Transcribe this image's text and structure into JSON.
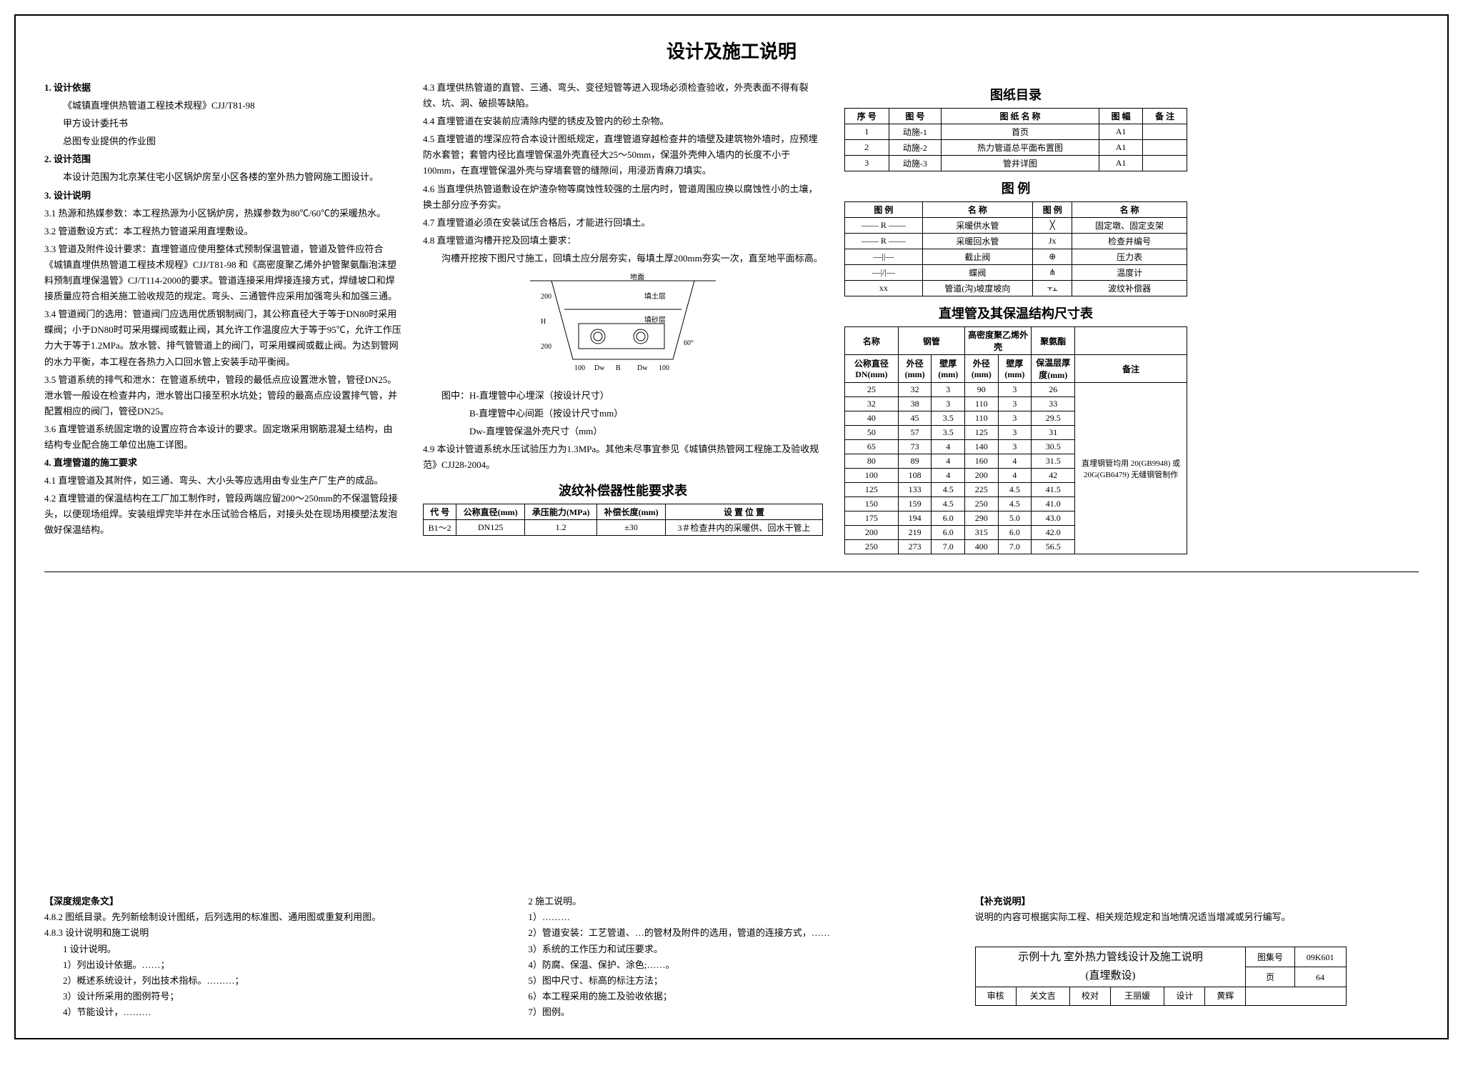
{
  "main_title": "设计及施工说明",
  "col1": {
    "h1": "1. 设计依据",
    "p1": "《城镇直埋供热管道工程技术规程》CJJ/T81-98",
    "p2": "甲方设计委托书",
    "p3": "总图专业提供的作业图",
    "h2": "2. 设计范围",
    "p4": "本设计范围为北京某住宅小区锅炉房至小区各楼的室外热力管网施工图设计。",
    "h3": "3. 设计说明",
    "p5": "3.1 热源和热媒参数：本工程热源为小区锅炉房，热媒参数为80℃/60℃的采暖热水。",
    "p6": "3.2 管道敷设方式：本工程热力管道采用直埋敷设。",
    "p7": "3.3 管道及附件设计要求：直埋管道应使用整体式预制保温管道，管道及管件应符合《城镇直埋供热管道工程技术规程》CJJ/T81-98 和《高密度聚乙烯外护管聚氨酯泡沫塑料预制直埋保温管》CJ/T114-2000的要求。管道连接采用焊接连接方式，焊缝坡口和焊接质量应符合相关施工验收规范的规定。弯头、三通管件应采用加强弯头和加强三通。",
    "p8": "3.4 管道阀门的选用：管道阀门应选用优质钢制阀门，其公称直径大于等于DN80时采用蝶阀；小于DN80时可采用蝶阀或截止阀，其允许工作温度应大于等于95℃，允许工作压力大于等于1.2MPa。放水管、排气管管道上的阀门，可采用蝶阀或截止阀。为达到管网的水力平衡，本工程在各热力入口回水管上安装手动平衡阀。",
    "p9": "3.5 管道系统的排气和泄水：在管道系统中，管段的最低点应设置泄水管，管径DN25。泄水管一般设在检查井内，泄水管出口接至积水坑处；管段的最高点应设置排气管，并配置相应的阀门，管径DN25。",
    "p10": "3.6 直埋管道系统固定墩的设置应符合本设计的要求。固定墩采用钢筋混凝土结构，由结构专业配合施工单位出施工详图。",
    "h4": "4. 直埋管道的施工要求",
    "p11": "4.1 直埋管道及其附件，如三通、弯头、大小头等应选用由专业生产厂生产的成品。",
    "p12": "4.2 直埋管道的保温结构在工厂加工制作时，管段两端应留200～250mm的不保温管段接头，以便现场组焊。安装组焊完毕并在水压试验合格后，对接头处在现场用模塑法发泡做好保温结构。"
  },
  "col2": {
    "p1": "4.3 直埋供热管道的直管、三通、弯头、变径短管等进入现场必须检查验收，外壳表面不得有裂纹、坑、洞、破损等缺陷。",
    "p2": "4.4 直埋管道在安装前应清除内壁的锈皮及管内的砂土杂物。",
    "p3": "4.5 直埋管道的埋深应符合本设计图纸规定，直埋管道穿越检查井的墙壁及建筑物外墙时，应预埋防水套管；套管内径比直埋管保温外壳直径大25～50mm，保温外壳伸入墙内的长度不小于100mm，在直埋管保温外壳与穿墙套管的缝隙间，用浸沥青麻刀填实。",
    "p4": "4.6 当直埋供热管道敷设在炉渣杂物等腐蚀性较强的土层内时，管道周围应换以腐蚀性小的土壤，换土部分应予夯实。",
    "p5": "4.7 直埋管道必须在安装试压合格后，才能进行回填土。",
    "p6": "4.8 直埋管道沟槽开挖及回填土要求：",
    "p7": "沟槽开挖按下图尺寸施工，回填土应分层夯实，每填土厚200mm夯实一次，直至地平面标高。",
    "diagram_labels": {
      "top": "地面",
      "fill": "填土层",
      "sand": "填砂层",
      "left_200": "200",
      "left_H": "H",
      "bot_100_l": "100",
      "bot_B": "B",
      "bot_Dw": "Dw",
      "bot_100_r": "100",
      "angle": "60°"
    },
    "diagram_note1": "图中：H-直埋管中心埋深（按设计尺寸）",
    "diagram_note2": "B-直埋管中心间距（按设计尺寸mm）",
    "diagram_note3": "Dw-直埋管保温外壳尺寸（mm）",
    "p8": "4.9 本设计管道系统水压试验压力为1.3MPa。其他未尽事宜参见《城镇供热管网工程施工及验收规范》CJJ28-2004。",
    "table_title": "波纹补偿器性能要求表",
    "table_headers": [
      "代 号",
      "公称直径(mm)",
      "承压能力(MPa)",
      "补偿长度(mm)",
      "设 置 位 置"
    ],
    "table_row": [
      "B1～2",
      "DN125",
      "1.2",
      "±30",
      "3＃检查井内的采暖供、回水干管上"
    ]
  },
  "col3": {
    "index_title": "图纸目录",
    "index_headers": [
      "序 号",
      "图 号",
      "图 纸 名 称",
      "图 幅",
      "备 注"
    ],
    "index_rows": [
      [
        "1",
        "动施-1",
        "首页",
        "A1",
        ""
      ],
      [
        "2",
        "动施-2",
        "热力管道总平面布置图",
        "A1",
        ""
      ],
      [
        "3",
        "动施-3",
        "管井详图",
        "A1",
        ""
      ]
    ],
    "legend_title": "图    例",
    "legend_headers": [
      "图    例",
      "名    称",
      "图    例",
      "名    称"
    ],
    "legend_rows": [
      [
        "—— R ——",
        "采暖供水管",
        "╳",
        "固定墩、固定支架"
      ],
      [
        "—— R ——",
        "采暖回水管",
        "Jx",
        "检查井编号"
      ],
      [
        "—||—",
        "截止阀",
        "⊕",
        "压力表"
      ],
      [
        "—|/|—",
        "蝶阀",
        "⋔",
        "温度计"
      ],
      [
        "xx",
        "管道(沟)坡度坡向",
        "⫟⫠",
        "波纹补偿器"
      ]
    ],
    "size_title": "直埋管及其保温结构尺寸表",
    "size_h1": [
      "名称",
      "钢管",
      "高密度聚乙烯外壳",
      "聚氨酯",
      ""
    ],
    "size_h2": [
      "公称直径 DN(mm)",
      "外径(mm)",
      "壁厚(mm)",
      "外径(mm)",
      "壁厚(mm)",
      "保温层厚度(mm)",
      "备注"
    ],
    "size_rows": [
      [
        "25",
        "32",
        "3",
        "90",
        "3",
        "26"
      ],
      [
        "32",
        "38",
        "3",
        "110",
        "3",
        "33"
      ],
      [
        "40",
        "45",
        "3.5",
        "110",
        "3",
        "29.5"
      ],
      [
        "50",
        "57",
        "3.5",
        "125",
        "3",
        "31"
      ],
      [
        "65",
        "73",
        "4",
        "140",
        "3",
        "30.5"
      ],
      [
        "80",
        "89",
        "4",
        "160",
        "4",
        "31.5"
      ],
      [
        "100",
        "108",
        "4",
        "200",
        "4",
        "42"
      ],
      [
        "125",
        "133",
        "4.5",
        "225",
        "4.5",
        "41.5"
      ],
      [
        "150",
        "159",
        "4.5",
        "250",
        "4.5",
        "41.0"
      ],
      [
        "175",
        "194",
        "6.0",
        "290",
        "5.0",
        "43.0"
      ],
      [
        "200",
        "219",
        "6.0",
        "315",
        "6.0",
        "42.0"
      ],
      [
        "250",
        "273",
        "7.0",
        "400",
        "7.0",
        "56.5"
      ]
    ],
    "size_note": "直埋钢管均用 20(GB9948) 或 20G(GB6479) 无缝钢管制作"
  },
  "footer": {
    "left_h": "【深度规定条文】",
    "left_1": "4.8.2  图纸目录。先列新绘制设计图纸，后列选用的标准图、通用图或重复利用图。",
    "left_2": "4.8.3  设计说明和施工说明",
    "left_3": "1  设计说明。",
    "left_4": "1）列出设计依据。……；",
    "left_5": "2）概述系统设计，列出技术指标。………；",
    "left_6": "3）设计所采用的图例符号；",
    "left_7": "4）节能设计，………",
    "mid_1": "2  施工说明。",
    "mid_2": "1）………",
    "mid_3": "2）管道安装：工艺管道、…的管材及附件的选用，管道的连接方式，……",
    "mid_4": "3）系统的工作压力和试压要求。",
    "mid_5": "4）防腐、保温、保护、涂色;……。",
    "mid_6": "5）图中尺寸、标高的标注方法；",
    "mid_7": "6）本工程采用的施工及验收依据；",
    "mid_8": "7）图例。",
    "right_h": "【补充说明】",
    "right_1": "说明的内容可根据实际工程、相关规范规定和当地情况适当增减或另行编写。",
    "title_block": {
      "title": "示例十九  室外热力管线设计及施工说明",
      "subtitle": "(直埋敷设)",
      "set_label": "图集号",
      "set_no": "09K601",
      "review": "审核",
      "review_name": "关文吉",
      "check": "校对",
      "check_name": "王丽媛",
      "design": "设计",
      "design_name": "黄辉",
      "page_label": "页",
      "page_no": "64"
    }
  }
}
